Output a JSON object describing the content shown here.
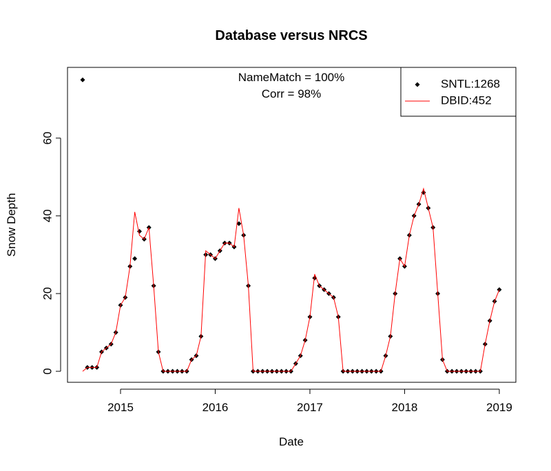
{
  "chart_data": {
    "type": "line",
    "title": "Database versus NRCS",
    "annotations": [
      "NameMatch = 100%",
      "Corr = 98%"
    ],
    "x_label": "Date",
    "y_label": "Snow Depth",
    "x": [
      2014.6,
      2014.65,
      2014.7,
      2014.75,
      2014.8,
      2014.85,
      2014.9,
      2014.95,
      2015,
      2015.05,
      2015.1,
      2015.15,
      2015.2,
      2015.25,
      2015.3,
      2015.35,
      2015.4,
      2015.45,
      2015.5,
      2015.55,
      2015.6,
      2015.65,
      2015.7,
      2015.75,
      2015.8,
      2015.85,
      2015.9,
      2015.95,
      2016,
      2016.05,
      2016.1,
      2016.15,
      2016.2,
      2016.25,
      2016.3,
      2016.35,
      2016.4,
      2016.45,
      2016.5,
      2016.55,
      2016.6,
      2016.65,
      2016.7,
      2016.75,
      2016.8,
      2016.85,
      2016.9,
      2016.95,
      2017,
      2017.05,
      2017.1,
      2017.15,
      2017.2,
      2017.25,
      2017.3,
      2017.35,
      2017.4,
      2017.45,
      2017.5,
      2017.55,
      2017.6,
      2017.65,
      2017.7,
      2017.75,
      2017.8,
      2017.85,
      2017.9,
      2017.95,
      2018,
      2018.05,
      2018.1,
      2018.15,
      2018.2,
      2018.25,
      2018.3,
      2018.35,
      2018.4,
      2018.45,
      2018.5,
      2018.55,
      2018.6,
      2018.65,
      2018.7,
      2018.75,
      2018.8,
      2018.85,
      2018.9,
      2018.95,
      2019
    ],
    "series": [
      {
        "name": "SNTL:1268",
        "color": "#000000",
        "marker": "diamond",
        "values": [
          75,
          1,
          1,
          1,
          5,
          6,
          7,
          10,
          17,
          19,
          27,
          29,
          36,
          34,
          37,
          22,
          5,
          0,
          0,
          0,
          0,
          0,
          0,
          3,
          4,
          9,
          30,
          30,
          29,
          31,
          33,
          33,
          32,
          38,
          35,
          22,
          0,
          0,
          0,
          0,
          0,
          0,
          0,
          0,
          0,
          2,
          4,
          8,
          14,
          24,
          22,
          21,
          20,
          19,
          14,
          0,
          0,
          0,
          0,
          0,
          0,
          0,
          0,
          0,
          4,
          9,
          20,
          29,
          27,
          35,
          40,
          43,
          46,
          42,
          37,
          20,
          3,
          0,
          0,
          0,
          0,
          0,
          0,
          0,
          0,
          7,
          13,
          18,
          21
        ]
      },
      {
        "name": "DBID:452",
        "color": "#ff0000",
        "marker": "line",
        "values": [
          0,
          1,
          1,
          1,
          5,
          6,
          7,
          10,
          17,
          19,
          27,
          41,
          35,
          34,
          37,
          22,
          5,
          0,
          0,
          0,
          0,
          0,
          0,
          3,
          4,
          9,
          31,
          30,
          29,
          31,
          33,
          33,
          32,
          42,
          35,
          22,
          0,
          0,
          0,
          0,
          0,
          0,
          0,
          0,
          0,
          2,
          4,
          8,
          14,
          25,
          22,
          21,
          20,
          19,
          14,
          0,
          0,
          0,
          0,
          0,
          0,
          0,
          0,
          0,
          4,
          9,
          20,
          29,
          27,
          35,
          40,
          43,
          47,
          42,
          37,
          20,
          3,
          0,
          0,
          0,
          0,
          0,
          0,
          0,
          0,
          7,
          13,
          18,
          21
        ]
      }
    ],
    "xlim": [
      2014.44,
      2019.175
    ],
    "xticks": [
      2015,
      2016,
      2017,
      2018,
      2019
    ],
    "ylim": [
      -2.83,
      78.2
    ],
    "yticks": [
      0,
      20,
      40,
      60
    ],
    "grid": false,
    "legend": "topright"
  }
}
